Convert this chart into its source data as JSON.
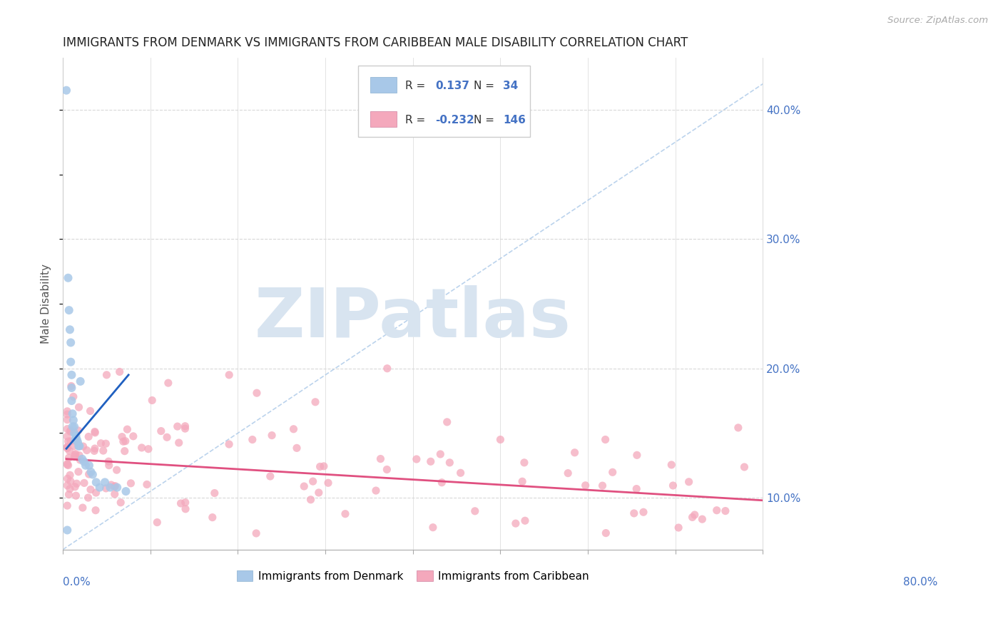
{
  "title": "IMMIGRANTS FROM DENMARK VS IMMIGRANTS FROM CARIBBEAN MALE DISABILITY CORRELATION CHART",
  "source": "Source: ZipAtlas.com",
  "ylabel": "Male Disability",
  "xlim": [
    0.0,
    0.8
  ],
  "ylim": [
    0.06,
    0.44
  ],
  "denmark_R": 0.137,
  "denmark_N": 34,
  "caribbean_R": -0.232,
  "caribbean_N": 146,
  "denmark_color": "#a8c8e8",
  "caribbean_color": "#f4a8bc",
  "denmark_trend_color": "#2060c0",
  "caribbean_trend_color": "#e05080",
  "text_color_blue": "#4472c4",
  "watermark_color": "#d8e4f0",
  "background_color": "#ffffff",
  "grid_color": "#d8d8d8",
  "denmark_x": [
    0.004,
    0.006,
    0.007,
    0.008,
    0.009,
    0.009,
    0.01,
    0.01,
    0.01,
    0.011,
    0.011,
    0.012,
    0.013,
    0.013,
    0.014,
    0.015,
    0.016,
    0.017,
    0.018,
    0.019,
    0.02,
    0.022,
    0.024,
    0.026,
    0.03,
    0.032,
    0.034,
    0.038,
    0.042,
    0.048,
    0.054,
    0.062,
    0.072,
    0.005
  ],
  "denmark_y": [
    0.415,
    0.27,
    0.245,
    0.23,
    0.22,
    0.205,
    0.195,
    0.185,
    0.175,
    0.165,
    0.155,
    0.16,
    0.155,
    0.15,
    0.145,
    0.148,
    0.145,
    0.143,
    0.14,
    0.14,
    0.19,
    0.13,
    0.128,
    0.125,
    0.125,
    0.12,
    0.118,
    0.112,
    0.108,
    0.112,
    0.108,
    0.108,
    0.105,
    0.075
  ],
  "dk_trend_x": [
    0.004,
    0.075
  ],
  "dk_trend_y": [
    0.138,
    0.195
  ],
  "cb_trend_x": [
    0.004,
    0.8
  ],
  "cb_trend_y": [
    0.13,
    0.098
  ]
}
